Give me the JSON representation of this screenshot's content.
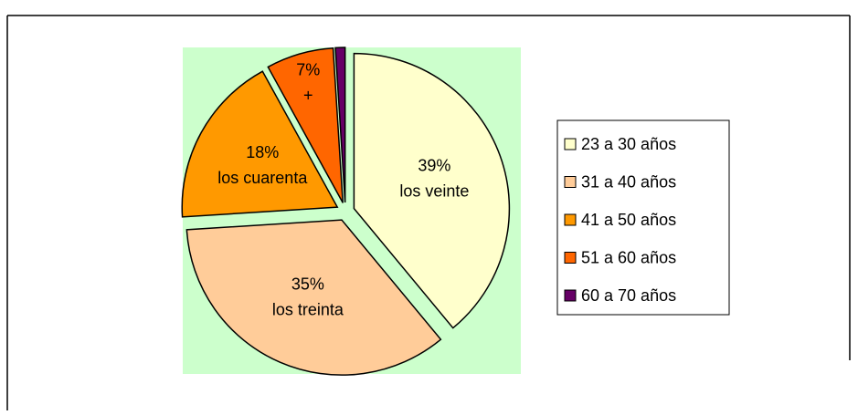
{
  "chart_data": {
    "type": "pie",
    "categories": [
      "23 a 30 años",
      "31 a 40 años",
      "41 a 50 años",
      "51 a 60 años",
      "60 a 70 años"
    ],
    "values": [
      39,
      35,
      18,
      7,
      1
    ],
    "value_labels": [
      "39%",
      "35%",
      "18%",
      "7%",
      null
    ],
    "slice_labels": [
      "los veinte",
      "los treinta",
      "los cuarenta",
      "+",
      null
    ],
    "colors": [
      "#ffffcc",
      "#ffcc99",
      "#ff9900",
      "#ff6600",
      "#660066"
    ],
    "legend": "right"
  }
}
